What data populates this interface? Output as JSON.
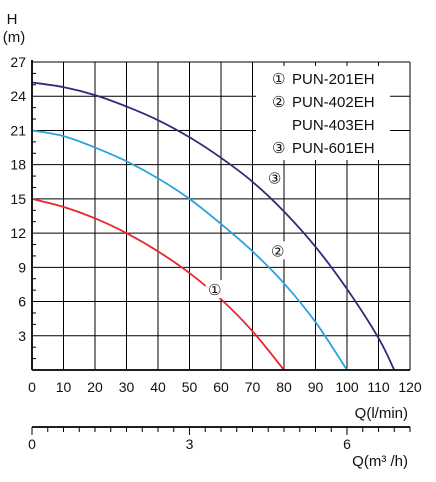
{
  "chart_data": {
    "type": "line",
    "ylabel": "H",
    "yunit": "(m)",
    "xlabel": "Q(l/min)",
    "x2label": "Q(m³ /h)",
    "xlim": [
      0,
      120
    ],
    "ylim": [
      0,
      27
    ],
    "x_ticks": [
      0,
      10,
      20,
      30,
      40,
      50,
      60,
      70,
      80,
      90,
      100,
      110,
      120
    ],
    "y_ticks": [
      3,
      6,
      9,
      12,
      15,
      18,
      21,
      24,
      27
    ],
    "x2_ticks": [
      0,
      3,
      6
    ],
    "x2_lim": [
      0,
      7.2
    ],
    "grid": true,
    "legend": {
      "position": "top-right",
      "entries": [
        {
          "marker": "①",
          "label": "PUN-201EH"
        },
        {
          "marker": "②",
          "label": "PUN-402EH"
        },
        {
          "marker": "",
          "label": "PUN-403EH"
        },
        {
          "marker": "③",
          "label": "PUN-601EH"
        }
      ]
    },
    "series": [
      {
        "marker": "①",
        "color": "#e8262b",
        "marker_at": [
          58,
          7
        ],
        "x": [
          0,
          10,
          20,
          30,
          40,
          50,
          60,
          70,
          80
        ],
        "values": [
          15,
          14.3,
          13.3,
          12,
          10.4,
          8.5,
          6.2,
          3.4,
          0
        ]
      },
      {
        "marker": "②",
        "color": "#2aa3dc",
        "marker_at": [
          78,
          10.4
        ],
        "x": [
          0,
          10,
          20,
          30,
          40,
          50,
          60,
          70,
          80,
          90,
          100
        ],
        "values": [
          21,
          20.5,
          19.5,
          18.3,
          16.8,
          15,
          12.8,
          10.4,
          7.6,
          4.2,
          0
        ]
      },
      {
        "marker": "③",
        "color": "#2b2d7c",
        "marker_at": [
          77,
          16.8
        ],
        "x": [
          0,
          10,
          20,
          30,
          40,
          50,
          60,
          70,
          80,
          90,
          100,
          110,
          115
        ],
        "values": [
          25.2,
          24.8,
          24.1,
          23.1,
          21.9,
          20.4,
          18.6,
          16.5,
          13.9,
          10.8,
          7.1,
          2.8,
          0
        ]
      }
    ]
  }
}
